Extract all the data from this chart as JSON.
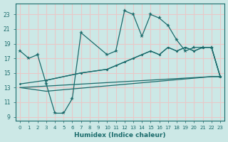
{
  "xlabel": "Humidex (Indice chaleur)",
  "xlim": [
    -0.5,
    23.5
  ],
  "ylim": [
    8.5,
    24.5
  ],
  "yticks": [
    9,
    11,
    13,
    15,
    17,
    19,
    21,
    23
  ],
  "xticks": [
    0,
    1,
    2,
    3,
    4,
    5,
    6,
    7,
    8,
    9,
    10,
    11,
    12,
    13,
    14,
    15,
    16,
    17,
    18,
    19,
    20,
    21,
    22,
    23
  ],
  "background_color": "#cce8e6",
  "grid_color": "#e8c8c8",
  "line_color": "#1a6b6b",
  "line1_x": [
    0,
    1,
    2,
    3,
    4,
    5,
    6,
    7,
    10,
    11,
    12,
    13,
    14,
    15,
    16,
    17,
    18,
    19,
    20,
    21,
    22,
    23
  ],
  "line1_y": [
    18,
    17,
    17.5,
    13.5,
    9.5,
    9.5,
    11.5,
    20.5,
    17.5,
    18.0,
    23.5,
    23.0,
    20.0,
    23.0,
    22.5,
    21.5,
    19.5,
    18.0,
    18.5,
    18.5,
    18.5,
    14.5
  ],
  "line2_x": [
    3,
    7,
    10,
    11,
    12,
    13,
    14,
    15,
    16,
    17,
    18,
    19,
    20,
    21,
    22,
    23
  ],
  "line2_y": [
    14.0,
    15.0,
    15.5,
    16.0,
    16.5,
    17.0,
    17.5,
    18.0,
    17.5,
    18.5,
    18.0,
    18.5,
    18.0,
    18.5,
    18.5,
    14.5
  ],
  "line3_x": [
    0,
    3,
    7,
    10,
    11,
    12,
    13,
    14,
    15,
    16,
    17,
    18,
    19,
    20,
    21,
    22,
    23
  ],
  "line3_y": [
    13.5,
    14.0,
    15.0,
    15.5,
    16.0,
    16.5,
    17.0,
    17.5,
    18.0,
    17.5,
    18.5,
    18.0,
    18.5,
    18.0,
    18.5,
    18.5,
    14.5
  ],
  "line4_x": [
    0,
    3,
    22,
    23
  ],
  "line4_y": [
    13.0,
    12.5,
    14.5,
    14.5
  ],
  "line5_x": [
    0,
    22,
    23
  ],
  "line5_y": [
    13.0,
    14.5,
    14.5
  ]
}
